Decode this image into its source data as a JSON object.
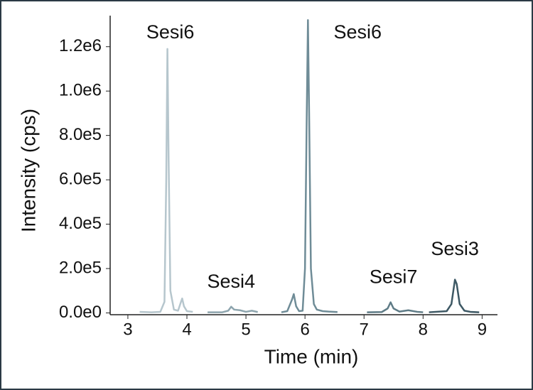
{
  "chart_data": {
    "type": "line",
    "xlabel": "Time (min)",
    "ylabel": "Intensity (cps)",
    "xlim": [
      2.7,
      9.26
    ],
    "xticks": [
      3,
      4,
      5,
      6,
      7,
      8,
      9
    ],
    "ylim": [
      -8000,
      1340000
    ],
    "yticks": [
      {
        "value": 0,
        "label": "0.0e0"
      },
      {
        "value": 200000,
        "label": "2.0e5"
      },
      {
        "value": 400000,
        "label": "4.0e5"
      },
      {
        "value": 600000,
        "label": "6.0e5"
      },
      {
        "value": 800000,
        "label": "8.0e5"
      },
      {
        "value": 1000000,
        "label": "1.0e6"
      },
      {
        "value": 1200000,
        "label": "1.2e6"
      }
    ],
    "series": [
      {
        "name": "Sesi6",
        "color": "#b6c6cd",
        "x": [
          3.2,
          3.4,
          3.55,
          3.62,
          3.65,
          3.67,
          3.69,
          3.72,
          3.78,
          3.85,
          3.9,
          3.92,
          3.95,
          4.0,
          4.1
        ],
        "values": [
          5000,
          3000,
          5000,
          50000,
          600000,
          1190000,
          700000,
          100000,
          15000,
          10000,
          50000,
          65000,
          30000,
          8000,
          5000
        ]
      },
      {
        "name": "Sesi4",
        "color": "#8ea5ae",
        "x": [
          4.35,
          4.6,
          4.7,
          4.75,
          4.8,
          4.9,
          5.0,
          5.1,
          5.2
        ],
        "values": [
          3000,
          3000,
          10000,
          28000,
          15000,
          12000,
          5000,
          10000,
          4000
        ]
      },
      {
        "name": "Sesi6",
        "color": "#6f8c97",
        "x": [
          5.6,
          5.7,
          5.78,
          5.81,
          5.85,
          5.9,
          5.96,
          6.0,
          6.03,
          6.05,
          6.07,
          6.1,
          6.15,
          6.2,
          6.3,
          6.4,
          6.55
        ],
        "values": [
          3000,
          8000,
          60000,
          85000,
          30000,
          8000,
          10000,
          200000,
          900000,
          1320000,
          900000,
          200000,
          40000,
          15000,
          8000,
          6000,
          4000
        ]
      },
      {
        "name": "Sesi7",
        "color": "#5e7b86",
        "x": [
          7.05,
          7.3,
          7.4,
          7.45,
          7.5,
          7.6,
          7.75,
          7.9,
          8.0
        ],
        "values": [
          3000,
          4000,
          20000,
          48000,
          20000,
          6000,
          12000,
          5000,
          3000
        ]
      },
      {
        "name": "Sesi3",
        "color": "#3d5864",
        "x": [
          8.1,
          8.4,
          8.48,
          8.54,
          8.57,
          8.62,
          8.7,
          8.8,
          8.95
        ],
        "values": [
          3000,
          8000,
          40000,
          150000,
          130000,
          40000,
          10000,
          5000,
          3000
        ]
      }
    ]
  }
}
